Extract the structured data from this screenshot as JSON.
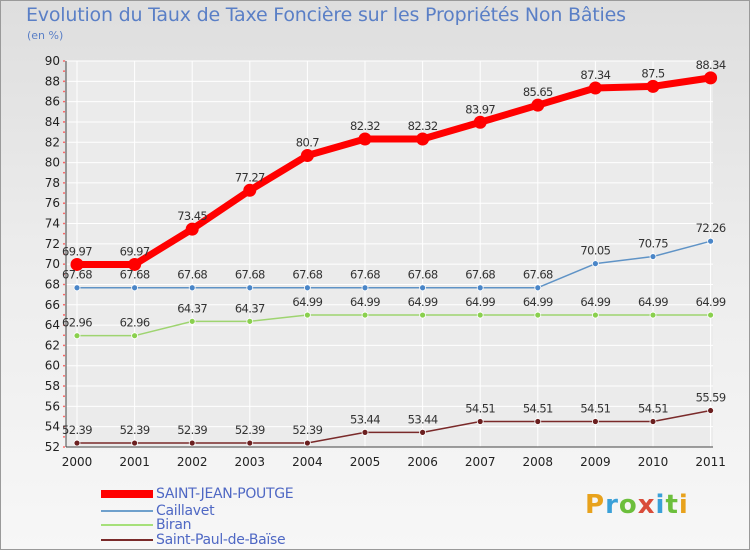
{
  "title": "Evolution du Taux de Taxe Foncière sur les Propriétés Non Bâties",
  "subtitle": "(en %)",
  "logo": {
    "text": "Proxiti"
  },
  "chart_data": {
    "type": "line",
    "x": [
      "2000",
      "2001",
      "2002",
      "2003",
      "2004",
      "2005",
      "2006",
      "2007",
      "2008",
      "2009",
      "2010",
      "2011"
    ],
    "ylim": [
      52,
      90
    ],
    "yticks": [
      52,
      54,
      56,
      58,
      60,
      62,
      64,
      66,
      68,
      70,
      72,
      74,
      76,
      78,
      80,
      82,
      84,
      86,
      88,
      90
    ],
    "grid": true,
    "legend_position": "bottom-left",
    "series": [
      {
        "name": "SAINT-JEAN-POUTGE",
        "color": "#ff0000",
        "labels": [
          "69.97",
          "69.97",
          "73.45",
          "77.27",
          "80.7",
          "82.32",
          "82.32",
          "83.97",
          "85.65",
          "87.34",
          "87.5",
          "88.34"
        ],
        "values": [
          69.97,
          69.97,
          73.45,
          77.27,
          80.7,
          82.32,
          82.32,
          83.97,
          85.65,
          87.34,
          87.5,
          88.34
        ]
      },
      {
        "name": "Caillavet",
        "color": "#6fa0cc",
        "labels": [
          "67.68",
          "67.68",
          "67.68",
          "67.68",
          "67.68",
          "67.68",
          "67.68",
          "67.68",
          "67.68",
          "70.05",
          "70.75",
          "72.26"
        ],
        "values": [
          67.68,
          67.68,
          67.68,
          67.68,
          67.68,
          67.68,
          67.68,
          67.68,
          67.68,
          70.05,
          70.75,
          72.26
        ]
      },
      {
        "name": "Biran",
        "color": "#a6e07a",
        "labels": [
          "62.96",
          "62.96",
          "64.37",
          "64.37",
          "64.99",
          "64.99",
          "64.99",
          "64.99",
          "64.99",
          "64.99",
          "64.99",
          "64.99"
        ],
        "values": [
          62.96,
          62.96,
          64.37,
          64.37,
          64.99,
          64.99,
          64.99,
          64.99,
          64.99,
          64.99,
          64.99,
          64.99
        ]
      },
      {
        "name": "Saint-Paul-de-Baïse",
        "color": "#7a2a2a",
        "labels": [
          "52.39",
          "52.39",
          "52.39",
          "52.39",
          "52.39",
          "53.44",
          "53.44",
          "54.51",
          "54.51",
          "54.51",
          "54.51",
          "55.59"
        ],
        "values": [
          52.39,
          52.39,
          52.39,
          52.39,
          52.39,
          53.44,
          53.44,
          54.51,
          54.51,
          54.51,
          54.51,
          55.59
        ]
      }
    ]
  }
}
